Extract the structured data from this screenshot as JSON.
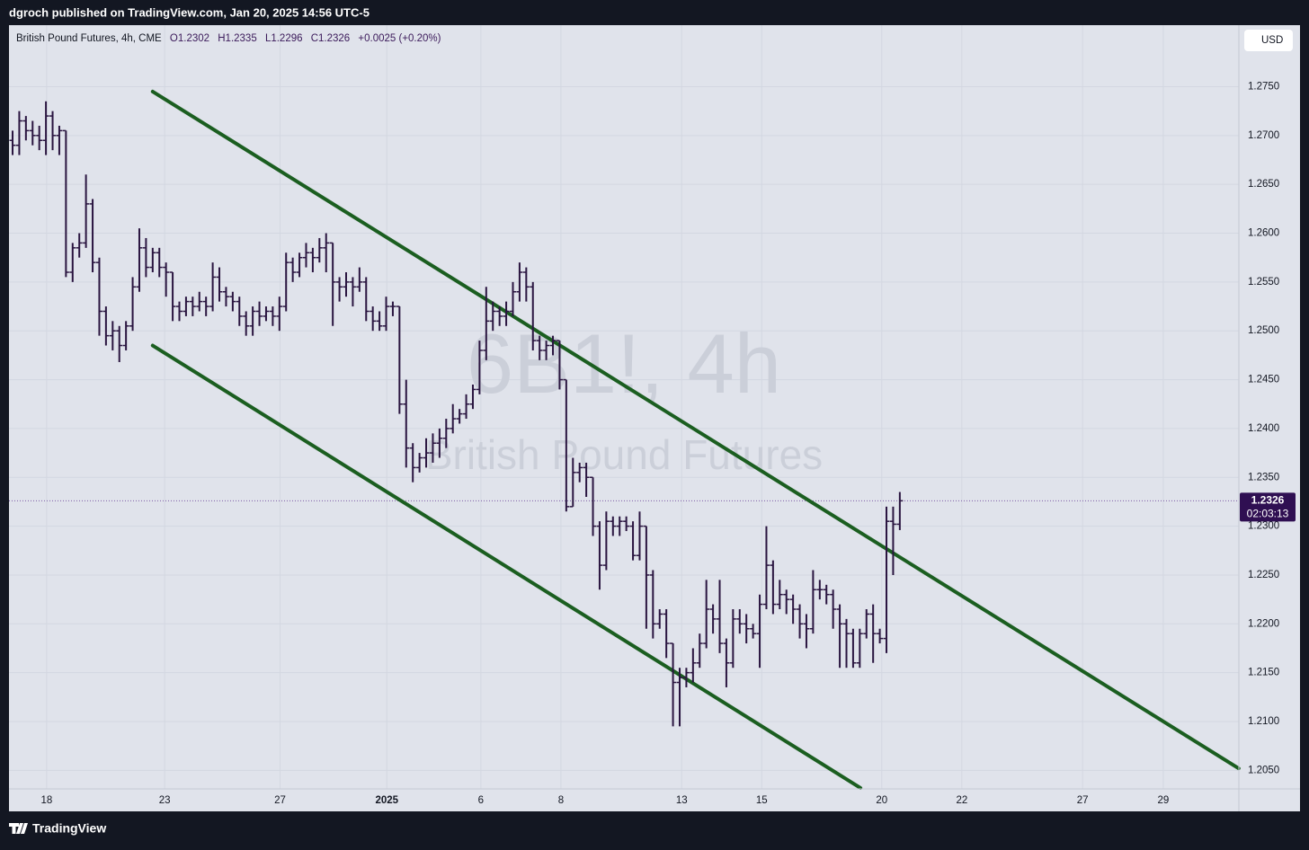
{
  "header": {
    "text": "dgroch published on TradingView.com, Jan 20, 2025 14:56 UTC-5"
  },
  "footer": {
    "brand": "TradingView"
  },
  "chart_data": {
    "type": "ohlc",
    "legend": {
      "title": "British Pound Futures, 4h, CME",
      "o": "O1.2302",
      "h": "H1.2335",
      "l": "L1.2296",
      "c": "C1.2326",
      "change": "+0.0025 (+0.20%)"
    },
    "watermark": {
      "symbol": "6B1!, 4h",
      "name": "British Pound Futures"
    },
    "currency": "USD",
    "last_price_label": "1.2326",
    "countdown": "02:03:13",
    "color": "#2a1540",
    "grid": true,
    "xlim": [
      -0.54,
      183.83
    ],
    "ylim": [
      1.2031,
      1.2813
    ],
    "xticks": [
      {
        "value": 5.1,
        "label": "18"
      },
      {
        "value": 22.8,
        "label": "23"
      },
      {
        "value": 40.1,
        "label": "27"
      },
      {
        "value": 56.1,
        "label": "2025"
      },
      {
        "value": 70.2,
        "label": "6"
      },
      {
        "value": 82.2,
        "label": "8"
      },
      {
        "value": 100.3,
        "label": "13"
      },
      {
        "value": 112.3,
        "label": "15"
      },
      {
        "value": 130.3,
        "label": "20"
      },
      {
        "value": 142.3,
        "label": "22"
      },
      {
        "value": 160.4,
        "label": "27"
      },
      {
        "value": 172.5,
        "label": "29"
      }
    ],
    "yticks": [
      {
        "value": 1.205,
        "label": "1.2050"
      },
      {
        "value": 1.21,
        "label": "1.2100"
      },
      {
        "value": 1.215,
        "label": "1.2150"
      },
      {
        "value": 1.22,
        "label": "1.2200"
      },
      {
        "value": 1.225,
        "label": "1.2250"
      },
      {
        "value": 1.23,
        "label": "1.2300"
      },
      {
        "value": 1.235,
        "label": "1.2350"
      },
      {
        "value": 1.24,
        "label": "1.2400"
      },
      {
        "value": 1.245,
        "label": "1.2450"
      },
      {
        "value": 1.25,
        "label": "1.2500"
      },
      {
        "value": 1.255,
        "label": "1.2550"
      },
      {
        "value": 1.26,
        "label": "1.2600"
      },
      {
        "value": 1.265,
        "label": "1.2650"
      },
      {
        "value": 1.27,
        "label": "1.2700"
      },
      {
        "value": 1.275,
        "label": "1.2750"
      }
    ],
    "trend_lines": [
      {
        "x": [
          21.0,
          183.8
        ],
        "y": [
          1.2745,
          1.2052
        ],
        "color": "#1b5e20"
      },
      {
        "x": [
          21.0,
          127.1
        ],
        "y": [
          1.2485,
          1.2032
        ],
        "color": "#1b5e20"
      }
    ],
    "x": [
      0,
      1,
      2,
      3,
      4,
      5,
      6,
      7,
      8,
      9,
      10,
      11,
      12,
      13,
      14,
      15,
      16,
      17,
      18,
      19,
      20,
      21,
      22,
      23,
      24,
      25,
      26,
      27,
      28,
      29,
      30,
      31,
      32,
      33,
      34,
      35,
      36,
      37,
      38,
      39,
      40,
      41,
      42,
      43,
      44,
      45,
      46,
      47,
      48,
      49,
      50,
      51,
      52,
      53,
      54,
      55,
      56,
      57,
      58,
      59,
      60,
      61,
      62,
      63,
      64,
      65,
      66,
      67,
      68,
      69,
      70,
      71,
      72,
      73,
      74,
      75,
      76,
      77,
      78,
      79,
      80,
      81,
      82,
      83,
      84,
      85,
      86,
      87,
      88,
      89,
      90,
      91,
      92,
      93,
      94,
      95,
      96,
      97,
      98,
      99,
      100,
      101,
      102,
      103,
      104,
      105,
      106,
      107,
      108,
      109,
      110,
      111,
      112,
      113,
      114,
      115,
      116,
      117,
      118,
      119,
      120,
      121,
      122,
      123,
      124,
      125,
      126,
      127,
      128,
      129,
      130,
      131,
      132,
      133
    ],
    "open": [
      1.2695,
      1.269,
      1.2715,
      1.2705,
      1.27,
      1.2695,
      1.272,
      1.27,
      1.2705,
      1.256,
      1.2585,
      1.259,
      1.263,
      1.257,
      1.252,
      1.2495,
      1.25,
      1.2485,
      1.2505,
      1.2545,
      1.2585,
      1.2565,
      1.258,
      1.2565,
      1.256,
      1.2525,
      1.252,
      1.253,
      1.2525,
      1.253,
      1.2525,
      1.2555,
      1.254,
      1.2535,
      1.253,
      1.2515,
      1.2505,
      1.252,
      1.2515,
      1.252,
      1.2515,
      1.2525,
      1.257,
      1.256,
      1.2575,
      1.258,
      1.2575,
      1.2585,
      1.259,
      1.255,
      1.2545,
      1.255,
      1.2545,
      1.255,
      1.252,
      1.251,
      1.2505,
      1.2525,
      1.2525,
      1.2425,
      1.238,
      1.236,
      1.237,
      1.2375,
      1.2385,
      1.239,
      1.24,
      1.241,
      1.2415,
      1.2425,
      1.244,
      1.248,
      1.251,
      1.252,
      1.2515,
      1.252,
      1.254,
      1.256,
      1.2545,
      1.249,
      1.248,
      1.2485,
      1.249,
      1.245,
      1.232,
      1.2355,
      1.236,
      1.235,
      1.23,
      1.226,
      1.2305,
      1.23,
      1.2305,
      1.23,
      1.227,
      1.23,
      1.225,
      1.22,
      1.221,
      1.218,
      1.214,
      1.2145,
      1.215,
      1.216,
      1.218,
      1.2215,
      1.2205,
      1.218,
      1.216,
      1.2205,
      1.22,
      1.2195,
      1.219,
      1.222,
      1.226,
      1.222,
      1.223,
      1.2225,
      1.2215,
      1.22,
      1.2195,
      1.2235,
      1.2235,
      1.223,
      1.2215,
      1.22,
      1.219,
      1.216,
      1.219,
      1.221,
      1.219,
      1.2185,
      1.2305,
      1.2302
    ],
    "high": [
      1.2705,
      1.2725,
      1.272,
      1.2715,
      1.271,
      1.2735,
      1.2725,
      1.271,
      1.2705,
      1.259,
      1.26,
      1.266,
      1.2635,
      1.2575,
      1.2525,
      1.251,
      1.2505,
      1.251,
      1.2555,
      1.2605,
      1.2595,
      1.2585,
      1.2585,
      1.257,
      1.256,
      1.253,
      1.2535,
      1.2535,
      1.254,
      1.2535,
      1.257,
      1.2565,
      1.2545,
      1.254,
      1.2535,
      1.252,
      1.2525,
      1.253,
      1.2525,
      1.2525,
      1.2535,
      1.258,
      1.2575,
      1.258,
      1.259,
      1.2585,
      1.2595,
      1.26,
      1.259,
      1.2555,
      1.256,
      1.2555,
      1.2565,
      1.2555,
      1.2525,
      1.252,
      1.2535,
      1.253,
      1.2525,
      1.245,
      1.2385,
      1.2375,
      1.239,
      1.2395,
      1.24,
      1.241,
      1.2425,
      1.242,
      1.2435,
      1.2445,
      1.249,
      1.2545,
      1.253,
      1.2525,
      1.253,
      1.255,
      1.257,
      1.2565,
      1.255,
      1.2495,
      1.249,
      1.2495,
      1.249,
      1.245,
      1.237,
      1.2365,
      1.2365,
      1.235,
      1.2305,
      1.2315,
      1.231,
      1.231,
      1.231,
      1.2305,
      1.2315,
      1.23,
      1.2255,
      1.2215,
      1.2215,
      1.218,
      1.2155,
      1.2155,
      1.2175,
      1.219,
      1.2245,
      1.222,
      1.2245,
      1.2185,
      1.2215,
      1.2215,
      1.221,
      1.22,
      1.223,
      1.23,
      1.2265,
      1.2245,
      1.2235,
      1.223,
      1.222,
      1.221,
      1.2255,
      1.2245,
      1.224,
      1.2235,
      1.222,
      1.2205,
      1.2195,
      1.2195,
      1.2215,
      1.222,
      1.2195,
      1.232,
      1.232,
      1.2335
    ],
    "low": [
      1.268,
      1.268,
      1.2695,
      1.269,
      1.2685,
      1.268,
      1.2685,
      1.268,
      1.2555,
      1.255,
      1.2575,
      1.2585,
      1.256,
      1.2495,
      1.2485,
      1.248,
      1.2468,
      1.248,
      1.25,
      1.254,
      1.2555,
      1.256,
      1.2555,
      1.2535,
      1.251,
      1.251,
      1.2515,
      1.2515,
      1.252,
      1.2515,
      1.252,
      1.253,
      1.2525,
      1.252,
      1.2505,
      1.2495,
      1.2495,
      1.2505,
      1.251,
      1.2505,
      1.25,
      1.252,
      1.255,
      1.2555,
      1.2565,
      1.256,
      1.257,
      1.256,
      1.2505,
      1.253,
      1.2535,
      1.2525,
      1.254,
      1.251,
      1.25,
      1.25,
      1.25,
      1.2515,
      1.2415,
      1.236,
      1.2345,
      1.2355,
      1.236,
      1.2365,
      1.237,
      1.238,
      1.2395,
      1.2405,
      1.241,
      1.242,
      1.2435,
      1.247,
      1.25,
      1.2505,
      1.2505,
      1.2515,
      1.253,
      1.253,
      1.248,
      1.247,
      1.247,
      1.2475,
      1.244,
      1.2315,
      1.232,
      1.2345,
      1.233,
      1.229,
      1.2235,
      1.2255,
      1.229,
      1.229,
      1.2295,
      1.2265,
      1.2265,
      1.2195,
      1.2185,
      1.2195,
      1.2165,
      1.2095,
      1.2095,
      1.2135,
      1.214,
      1.2155,
      1.2175,
      1.219,
      1.217,
      1.2135,
      1.2155,
      1.219,
      1.218,
      1.2185,
      1.2155,
      1.2215,
      1.221,
      1.2215,
      1.221,
      1.22,
      1.2185,
      1.2175,
      1.219,
      1.2225,
      1.222,
      1.2195,
      1.2155,
      1.2155,
      1.2155,
      1.2155,
      1.2185,
      1.216,
      1.218,
      1.217,
      1.225,
      1.2296
    ],
    "close": [
      1.269,
      1.2715,
      1.2705,
      1.27,
      1.2695,
      1.272,
      1.27,
      1.2705,
      1.256,
      1.2585,
      1.259,
      1.263,
      1.257,
      1.252,
      1.2495,
      1.25,
      1.2485,
      1.2505,
      1.2545,
      1.2585,
      1.2565,
      1.258,
      1.2565,
      1.256,
      1.2525,
      1.252,
      1.253,
      1.2525,
      1.253,
      1.2525,
      1.2555,
      1.254,
      1.2535,
      1.253,
      1.2515,
      1.2505,
      1.252,
      1.2515,
      1.252,
      1.2515,
      1.2525,
      1.257,
      1.256,
      1.2575,
      1.258,
      1.2575,
      1.2585,
      1.259,
      1.255,
      1.2545,
      1.255,
      1.2545,
      1.255,
      1.252,
      1.251,
      1.2505,
      1.2525,
      1.2525,
      1.2425,
      1.238,
      1.236,
      1.237,
      1.2375,
      1.2385,
      1.239,
      1.24,
      1.241,
      1.2415,
      1.2425,
      1.244,
      1.248,
      1.251,
      1.252,
      1.2515,
      1.252,
      1.254,
      1.256,
      1.2545,
      1.249,
      1.248,
      1.2485,
      1.249,
      1.245,
      1.232,
      1.2355,
      1.236,
      1.235,
      1.23,
      1.226,
      1.2305,
      1.23,
      1.2305,
      1.23,
      1.227,
      1.23,
      1.225,
      1.22,
      1.221,
      1.218,
      1.214,
      1.2145,
      1.215,
      1.216,
      1.218,
      1.2215,
      1.2205,
      1.218,
      1.216,
      1.2205,
      1.22,
      1.2195,
      1.219,
      1.222,
      1.226,
      1.222,
      1.223,
      1.2225,
      1.2215,
      1.22,
      1.2195,
      1.2235,
      1.2235,
      1.223,
      1.2215,
      1.22,
      1.219,
      1.216,
      1.219,
      1.221,
      1.219,
      1.2185,
      1.2305,
      1.2302,
      1.2326
    ]
  }
}
